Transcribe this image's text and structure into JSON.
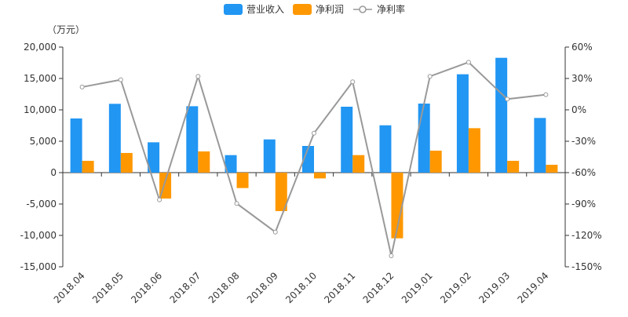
{
  "chart_data": {
    "type": "bar",
    "unit_label": "（万元）",
    "categories": [
      "2018.04",
      "2018.05",
      "2018.06",
      "2018.07",
      "2018.08",
      "2018.09",
      "2018.10",
      "2018.11",
      "2018.12",
      "2019.01",
      "2019.02",
      "2019.03",
      "2019.04"
    ],
    "series": [
      {
        "name": "营业收入",
        "type": "bar",
        "axis": "left",
        "color": "#2196f3",
        "values": [
          8630,
          10960,
          4830,
          10580,
          2790,
          5290,
          4250,
          10500,
          7540,
          11000,
          15670,
          18290,
          8710
        ]
      },
      {
        "name": "净利润",
        "type": "bar",
        "axis": "left",
        "color": "#ff9800",
        "values": [
          1880,
          3130,
          -4130,
          3380,
          -2460,
          -6130,
          -920,
          2790,
          -10460,
          3500,
          7080,
          1880,
          1250
        ]
      },
      {
        "name": "净利率",
        "type": "line",
        "axis": "right",
        "color": "#999999",
        "values": [
          21.8,
          28.8,
          -86.0,
          32.0,
          -89.5,
          -116.8,
          -22.3,
          26.8,
          -139.5,
          32.0,
          45.5,
          10.3,
          14.5
        ]
      }
    ],
    "y_left": {
      "min": -15000,
      "max": 20000,
      "ticks": [
        "20,000",
        "15,000",
        "10,000",
        "5,000",
        "0",
        "-5,000",
        "-10,000",
        "-15,000"
      ]
    },
    "y_right": {
      "min": -150,
      "max": 60,
      "ticks": [
        "60%",
        "30%",
        "0%",
        "-30%",
        "-60%",
        "-90%",
        "-120%",
        "-150%"
      ]
    },
    "grid": false,
    "legend": "top-center"
  }
}
